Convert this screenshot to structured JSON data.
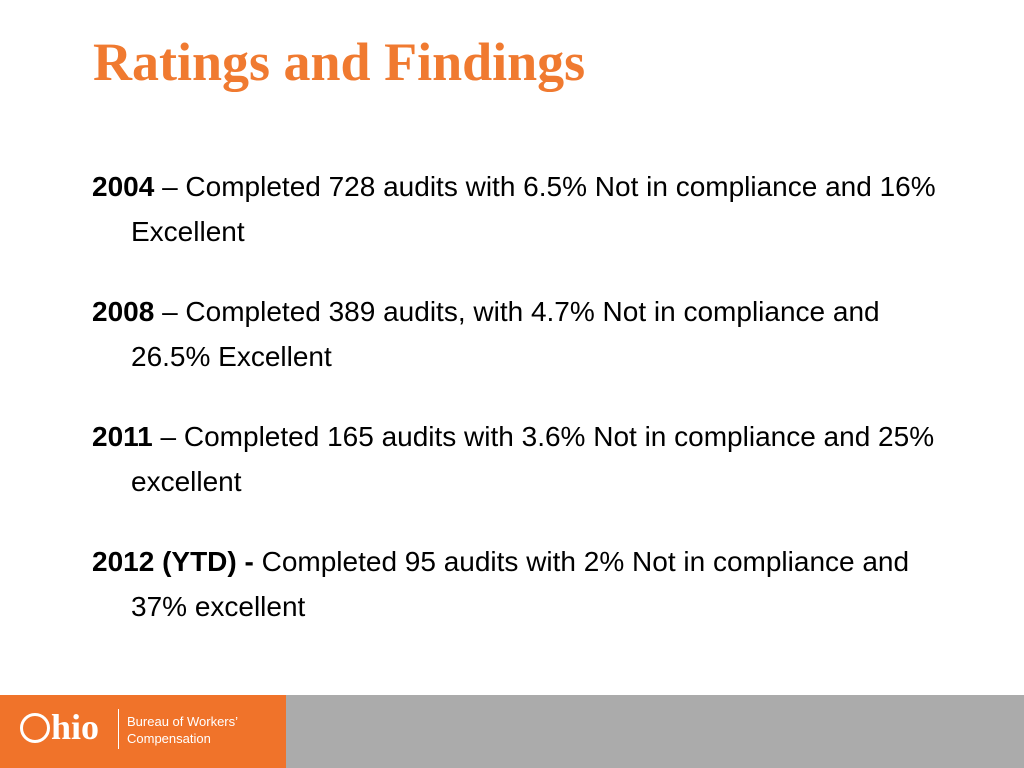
{
  "slide": {
    "title": "Ratings and Findings",
    "items": [
      {
        "year": "2004",
        "text": " – Completed 728 audits with 6.5% Not in compliance and 16% Excellent"
      },
      {
        "year": "2008",
        "text": " – Completed 389 audits, with 4.7% Not in compliance and 26.5% Excellent"
      },
      {
        "year": "2011",
        "text": " – Completed 165 audits with 3.6% Not in compliance and 25% excellent"
      },
      {
        "year": "2012 (YTD) -",
        "text": " Completed 95 audits with 2% Not in compliance and 37% excellent"
      }
    ]
  },
  "footer": {
    "logo_text": "hio",
    "agency_line1": "Bureau of Workers’",
    "agency_line2": "Compensation"
  },
  "colors": {
    "title": "#f07a30",
    "footer_orange": "#f0732a",
    "footer_gray": "#ababab"
  }
}
